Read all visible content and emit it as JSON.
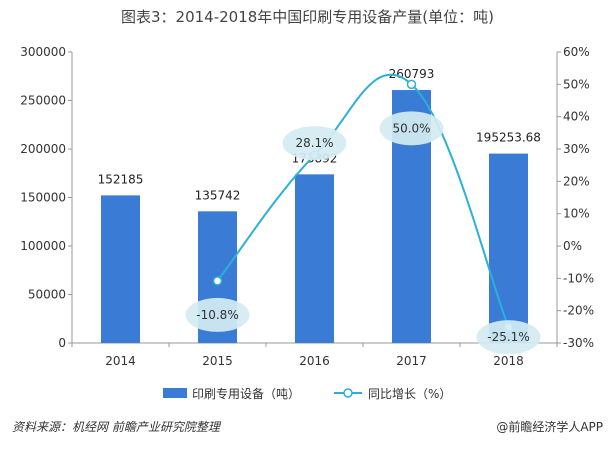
{
  "title": "图表3：2014-2018年中国印刷专用设备产量(单位：吨)",
  "source_note": "资料来源：机经网 前瞻产业研究院整理",
  "credit": "@前瞻经济学人APP",
  "chart_data": {
    "type": "bar",
    "categories": [
      "2014",
      "2015",
      "2016",
      "2017",
      "2018"
    ],
    "series": [
      {
        "name": "印刷专用设备（吨）",
        "type": "bar",
        "axis": "left",
        "values": [
          152185,
          135742,
          173892,
          260793,
          195253.68
        ],
        "labels": [
          "152185",
          "135742",
          "173892",
          "260793",
          "195253.68"
        ],
        "color": "#3a7bd5"
      },
      {
        "name": "同比增长（%）",
        "type": "line",
        "axis": "right",
        "values": [
          null,
          -10.8,
          28.1,
          50.0,
          -25.1
        ],
        "labels": [
          "",
          "-10.8%",
          "28.1%",
          "50.0%",
          "-25.1%"
        ],
        "color": "#2bb0d6"
      }
    ],
    "left_axis": {
      "ylim": [
        0,
        300000
      ],
      "ticks": [
        0,
        50000,
        100000,
        150000,
        200000,
        250000,
        300000
      ],
      "tick_labels": [
        "0",
        "50000",
        "100000",
        "150000",
        "200000",
        "250000",
        "300000"
      ]
    },
    "right_axis": {
      "ylim": [
        -30,
        60
      ],
      "ticks": [
        -30,
        -20,
        -10,
        0,
        10,
        20,
        30,
        40,
        50,
        60
      ],
      "tick_labels": [
        "-30%",
        "-20%",
        "-10%",
        "0%",
        "10%",
        "20%",
        "30%",
        "40%",
        "50%",
        "60%"
      ]
    },
    "grid": false,
    "legend_position": "bottom"
  }
}
